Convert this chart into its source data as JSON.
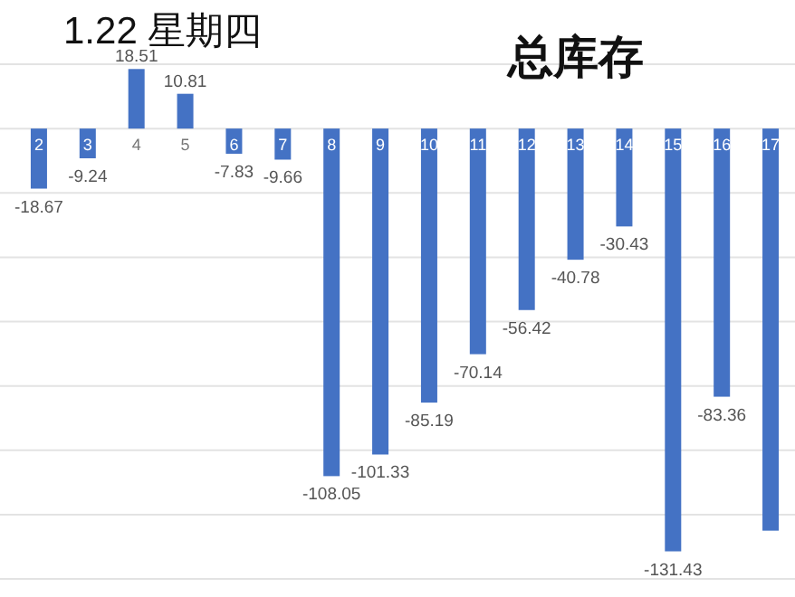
{
  "chart_data": {
    "type": "bar",
    "title": "总库存",
    "subtitle": "1.22 星期四",
    "categories": [
      "2",
      "3",
      "4",
      "5",
      "6",
      "7",
      "8",
      "9",
      "10",
      "11",
      "12",
      "13",
      "14",
      "15",
      "16",
      "17"
    ],
    "values": [
      -18.67,
      -9.24,
      18.51,
      10.81,
      -7.83,
      -9.66,
      -108.05,
      -101.33,
      -85.19,
      -70.14,
      -56.42,
      -40.78,
      -30.43,
      -131.43,
      -83.36,
      -125
    ],
    "value_labels": [
      "-18.67",
      "-9.24",
      "18.51",
      "10.81",
      "-7.83",
      "-9.66",
      "-108.05",
      "-101.33",
      "-85.19",
      "-70.14",
      "-56.42",
      "-40.78",
      "-30.43",
      "-131.43",
      "-83.36",
      null
    ],
    "color": "#4472c4",
    "ylim": [
      -140,
      20
    ],
    "yticks": [
      {
        "value": 20,
        "label": null
      },
      {
        "value": 0,
        "label": null
      },
      {
        "value": -20,
        "label": null
      },
      {
        "value": -40,
        "label": null
      },
      {
        "value": -60,
        "label": null
      },
      {
        "value": -80,
        "label": null
      },
      {
        "value": -100,
        "label": null
      },
      {
        "value": -120,
        "label": null
      },
      {
        "value": -140,
        "label": null
      }
    ],
    "grid": "y"
  }
}
